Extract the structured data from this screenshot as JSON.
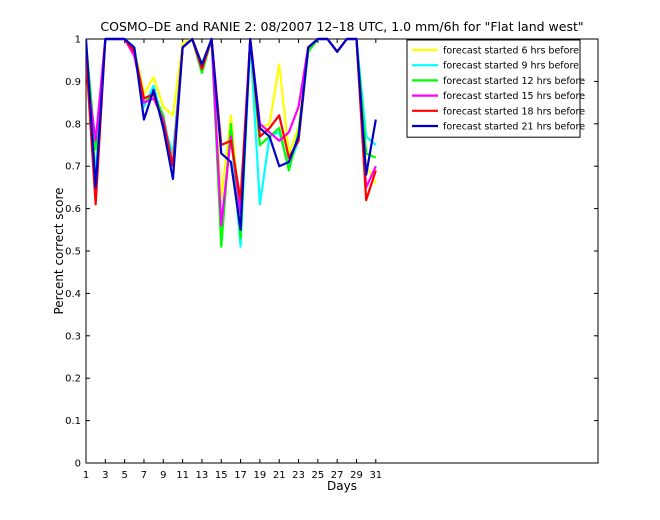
{
  "chart_data": {
    "type": "line",
    "title": "COSMO–DE and RANIE 2: 08/2007 12–18 UTC, 1.0 mm/6h for \"Flat land west\"",
    "xlabel": "Days",
    "ylabel": "Percent correct score",
    "xlim": [
      1,
      54
    ],
    "ylim": [
      0,
      1
    ],
    "x_ticks": [
      "1",
      "3",
      "5",
      "7",
      "9",
      "11",
      "13",
      "15",
      "17",
      "19",
      "21",
      "23",
      "25",
      "27",
      "29",
      "31"
    ],
    "y_ticks": [
      "0",
      "0.1",
      "0.2",
      "0.3",
      "0.4",
      "0.5",
      "0.6",
      "0.7",
      "0.8",
      "0.9",
      "1"
    ],
    "grid": false,
    "legend_position": "top-right",
    "x": [
      1,
      2,
      3,
      4,
      5,
      6,
      7,
      8,
      9,
      10,
      11,
      12,
      13,
      14,
      15,
      16,
      17,
      18,
      19,
      20,
      21,
      22,
      23,
      24,
      25,
      26,
      27,
      28,
      29,
      30,
      31
    ],
    "series": [
      {
        "name": "forecast started 6 hrs before",
        "color": "#ffff00",
        "values": [
          1.0,
          0.7,
          1.0,
          1.0,
          1.0,
          0.98,
          0.87,
          0.91,
          0.84,
          0.82,
          0.99,
          1.0,
          0.94,
          1.0,
          0.62,
          0.82,
          0.57,
          1.0,
          0.79,
          0.8,
          0.94,
          0.73,
          0.79,
          0.98,
          1.0,
          1.0,
          0.97,
          1.0,
          1.0,
          0.7,
          0.66
        ]
      },
      {
        "name": "forecast started 9 hrs before",
        "color": "#00ffff",
        "values": [
          0.97,
          0.68,
          1.0,
          1.0,
          1.0,
          0.98,
          0.84,
          0.89,
          0.8,
          0.73,
          0.98,
          1.0,
          0.93,
          1.0,
          0.56,
          0.78,
          0.51,
          1.0,
          0.61,
          0.77,
          0.78,
          0.7,
          0.76,
          0.97,
          1.0,
          1.0,
          0.97,
          1.0,
          1.0,
          0.77,
          0.75
        ]
      },
      {
        "name": "forecast started 12 hrs before",
        "color": "#00ff00",
        "values": [
          0.99,
          0.74,
          1.0,
          1.0,
          1.0,
          0.97,
          0.85,
          0.87,
          0.82,
          0.7,
          0.98,
          1.0,
          0.92,
          1.0,
          0.51,
          0.8,
          0.53,
          1.0,
          0.75,
          0.77,
          0.79,
          0.69,
          0.78,
          0.97,
          1.0,
          1.0,
          0.97,
          1.0,
          1.0,
          0.73,
          0.72
        ]
      },
      {
        "name": "forecast started 15 hrs before",
        "color": "#ff00ff",
        "values": [
          0.93,
          0.76,
          1.0,
          1.0,
          1.0,
          0.96,
          0.85,
          0.86,
          0.81,
          0.7,
          0.98,
          1.0,
          0.93,
          1.0,
          0.56,
          0.77,
          0.59,
          1.0,
          0.8,
          0.78,
          0.76,
          0.78,
          0.84,
          0.98,
          1.0,
          1.0,
          0.97,
          1.0,
          1.0,
          0.65,
          0.7
        ]
      },
      {
        "name": "forecast started 18 hrs before",
        "color": "#ff0000",
        "values": [
          0.96,
          0.61,
          1.0,
          1.0,
          1.0,
          0.97,
          0.86,
          0.87,
          0.8,
          0.7,
          0.98,
          1.0,
          0.93,
          1.0,
          0.75,
          0.76,
          0.62,
          1.0,
          0.77,
          0.79,
          0.82,
          0.72,
          0.76,
          0.98,
          1.0,
          1.0,
          0.97,
          1.0,
          1.0,
          0.62,
          0.69
        ]
      },
      {
        "name": "forecast started 21 hrs before",
        "color": "#0000cc",
        "values": [
          1.0,
          0.65,
          1.0,
          1.0,
          1.0,
          0.98,
          0.81,
          0.88,
          0.79,
          0.67,
          0.98,
          1.0,
          0.94,
          1.0,
          0.73,
          0.71,
          0.55,
          1.0,
          0.79,
          0.77,
          0.7,
          0.71,
          0.77,
          0.98,
          1.0,
          1.0,
          0.97,
          1.0,
          1.0,
          0.68,
          0.81
        ]
      }
    ]
  }
}
